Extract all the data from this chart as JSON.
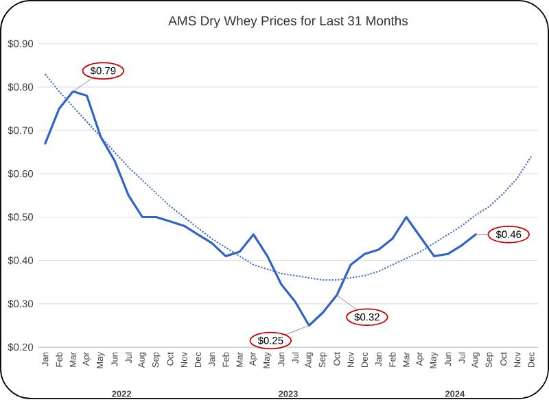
{
  "chart_data": {
    "type": "line",
    "title": "AMS Dry Whey Prices for Last 31 Months",
    "categories": [
      "Jan",
      "Feb",
      "Mar",
      "Apr",
      "May",
      "Jun",
      "Jul",
      "Aug",
      "Sep",
      "Oct",
      "Nov",
      "Dec",
      "Jan",
      "Feb",
      "Mar",
      "Apr",
      "May",
      "Jun",
      "Jul",
      "Aug",
      "Sep",
      "Oct",
      "Nov",
      "Dec",
      "Jan",
      "Feb",
      "Mar",
      "Apr",
      "May",
      "Jun",
      "Jul",
      "Aug",
      "Sep",
      "Oct",
      "Nov",
      "Dec"
    ],
    "series": [
      {
        "color": "#2f63c6",
        "line_style": "solid",
        "values": [
          0.67,
          0.75,
          0.79,
          0.78,
          0.685,
          0.63,
          0.55,
          0.5,
          0.5,
          0.49,
          0.48,
          0.46,
          0.44,
          0.41,
          0.42,
          0.46,
          0.41,
          0.345,
          0.305,
          0.25,
          0.28,
          0.32,
          0.39,
          0.415,
          0.425,
          0.45,
          0.5,
          0.455,
          0.41,
          0.415,
          0.435,
          0.46,
          null,
          null,
          null,
          null
        ],
        "value_labels": [
          null,
          null,
          "$0.79",
          null,
          null,
          null,
          null,
          null,
          null,
          null,
          null,
          null,
          null,
          null,
          null,
          null,
          null,
          null,
          null,
          "$0.25",
          null,
          "$0.32",
          null,
          null,
          null,
          null,
          null,
          null,
          null,
          null,
          null,
          "$0.46",
          null,
          null,
          null,
          null
        ]
      },
      {
        "color": "#4472c4",
        "line_style": "dotted",
        "values": [
          0.83,
          0.79,
          0.755,
          0.72,
          0.685,
          0.65,
          0.615,
          0.585,
          0.555,
          0.525,
          0.5,
          0.475,
          0.45,
          0.43,
          0.41,
          0.39,
          0.38,
          0.37,
          0.365,
          0.36,
          0.355,
          0.355,
          0.36,
          0.365,
          0.375,
          0.39,
          0.405,
          0.42,
          0.44,
          0.46,
          0.48,
          0.505,
          0.525,
          0.555,
          0.59,
          0.64
        ]
      }
    ],
    "ylim": [
      0.2,
      0.9
    ],
    "yticks": [
      {
        "value": 0.2,
        "label": "$0.20"
      },
      {
        "value": 0.3,
        "label": "$0.30"
      },
      {
        "value": 0.4,
        "label": "$0.40"
      },
      {
        "value": 0.5,
        "label": "$0.50"
      },
      {
        "value": 0.6,
        "label": "$0.60"
      },
      {
        "value": 0.7,
        "label": "$0.70"
      },
      {
        "value": 0.8,
        "label": "$0.80"
      },
      {
        "value": 0.9,
        "label": "$0.90"
      }
    ],
    "grid": "y",
    "annotations": [
      "2022",
      "2023",
      "2024"
    ]
  }
}
